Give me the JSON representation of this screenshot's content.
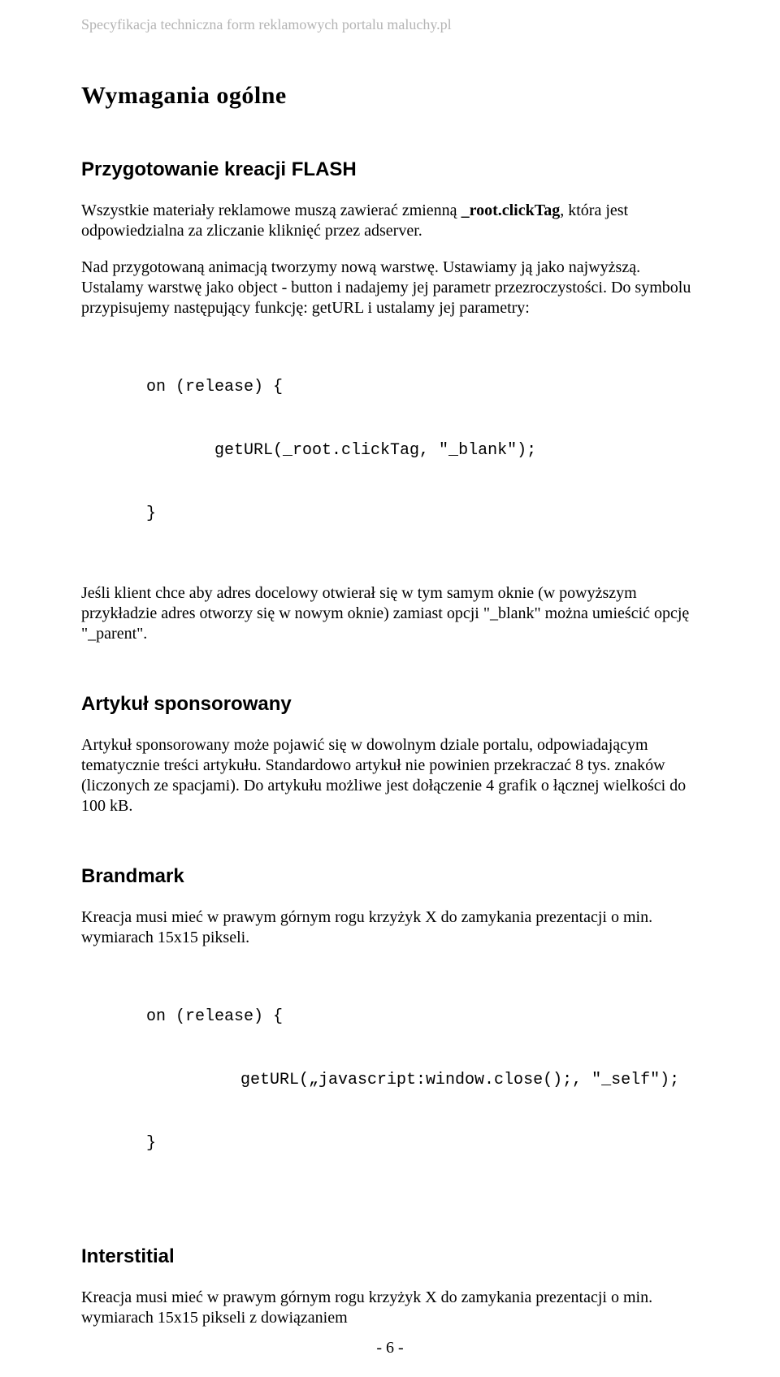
{
  "header": {
    "running_title": "Specyfikacja techniczna form reklamowych portalu maluchy.pl"
  },
  "sections": {
    "title": "Wymagania ogólne",
    "flash": {
      "heading": "Przygotowanie kreacji FLASH",
      "p1_pre": "Wszystkie materiały reklamowe muszą zawierać zmienną ",
      "p1_bold": "_root.clickTag",
      "p1_post": ", która jest odpowiedzialna za zliczanie kliknięć przez adserver.",
      "p2": "Nad przygotowaną animacją tworzymy nową warstwę. Ustawiamy ją jako najwyższą. Ustalamy warstwę jako object - button i nadajemy jej parametr przezroczystości. Do symbolu przypisujemy następujący funkcję: getURL i ustalamy jej parametry:",
      "code1_l1": "on (release) {",
      "code1_l2": "       getURL(_root.clickTag, \"_blank\");",
      "code1_l3": "}",
      "p3": "Jeśli klient chce aby adres docelowy otwierał się w tym samym oknie (w powyższym przykładzie adres otworzy się w nowym oknie) zamiast opcji \"_blank\" można umieścić opcję \"_parent\"."
    },
    "sponsored": {
      "heading": "Artykuł sponsorowany",
      "p1": "Artykuł sponsorowany może pojawić się w dowolnym dziale portalu, odpowiadającym tematycznie treści artykułu. Standardowo artykuł nie powinien przekraczać 8 tys. znaków (liczonych ze spacjami). Do artykułu możliwe jest dołączenie 4 grafik o łącznej wielkości do 100 kB."
    },
    "brandmark": {
      "heading": "Brandmark",
      "p1": "Kreacja musi mieć w prawym górnym rogu krzyżyk X do zamykania prezentacji o min. wymiarach 15x15 pikseli.",
      "code_l1": "on (release) {",
      "code_l2": "   getURL(„javascript:window.close();, \"_self\");",
      "code_l3": "}"
    },
    "interstitial": {
      "heading": "Interstitial",
      "p1": "Kreacja musi mieć w prawym górnym rogu krzyżyk X do zamykania prezentacji o min. wymiarach 15x15 pikseli z dowiązaniem"
    }
  },
  "footer": {
    "page_number": "- 6 -"
  }
}
